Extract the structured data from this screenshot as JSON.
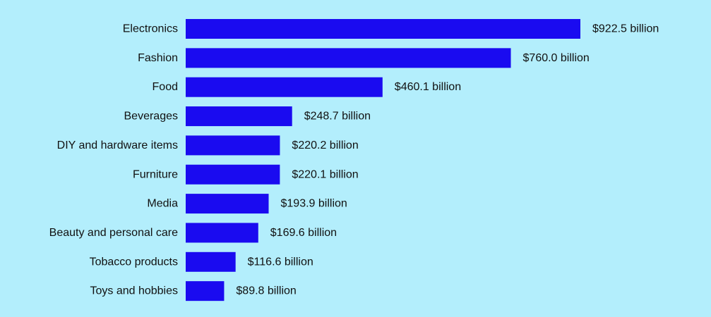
{
  "colors": {
    "background": "#b3eefc",
    "bar": "#1a0bf0",
    "text": "#111111"
  },
  "chart_data": {
    "type": "bar",
    "orientation": "horizontal",
    "categories": [
      "Electronics",
      "Fashion",
      "Food",
      "Beverages",
      "DIY and hardware items",
      "Furniture",
      "Media",
      "Beauty and personal care",
      "Tobacco products",
      "Toys and hobbies"
    ],
    "values": [
      922.5,
      760.0,
      460.1,
      248.7,
      220.2,
      220.1,
      193.9,
      169.6,
      116.6,
      89.8
    ],
    "value_labels": [
      "$922.5 billion",
      "$760.0 billion",
      "$460.1 billion",
      "$248.7 billion",
      "$220.2 billion",
      "$220.1 billion",
      "$193.9 billion",
      "$169.6 billion",
      "$116.6 billion",
      "$89.8 billion"
    ],
    "unit": "billion USD",
    "xlim": [
      0,
      922.5
    ],
    "grid": false,
    "legend": "none",
    "title": "",
    "xlabel": "",
    "ylabel": ""
  }
}
